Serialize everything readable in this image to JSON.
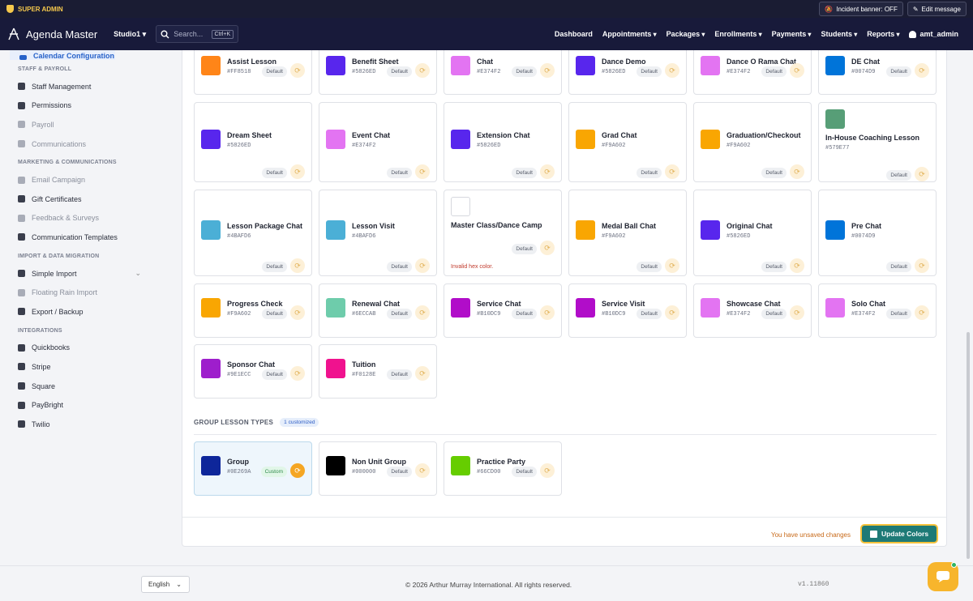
{
  "topbar": {
    "super_admin": "SUPER ADMIN",
    "incident_banner": "Incident banner: OFF",
    "edit_message": "Edit message"
  },
  "nav": {
    "app_name": "Agenda Master",
    "studio": "Studio1",
    "search_placeholder": "Search...",
    "search_shortcut": "Ctrl+K",
    "menu": [
      "Dashboard",
      "Appointments",
      "Packages",
      "Enrollments",
      "Payments",
      "Students",
      "Reports"
    ],
    "user": "amt_admin"
  },
  "sidebar": {
    "active": "Calendar Configuration",
    "sections": [
      {
        "title": "STAFF & PAYROLL",
        "items": [
          {
            "label": "Staff Management",
            "dim": false
          },
          {
            "label": "Permissions",
            "dim": false
          },
          {
            "label": "Payroll",
            "dim": true
          },
          {
            "label": "Communications",
            "dim": true
          }
        ]
      },
      {
        "title": "MARKETING & COMMUNICATIONS",
        "items": [
          {
            "label": "Email Campaign",
            "dim": true
          },
          {
            "label": "Gift Certificates",
            "dim": false
          },
          {
            "label": "Feedback & Surveys",
            "dim": true
          },
          {
            "label": "Communication Templates",
            "dim": false
          }
        ]
      },
      {
        "title": "IMPORT & DATA MIGRATION",
        "items": [
          {
            "label": "Simple Import",
            "dim": false
          },
          {
            "label": "Floating Rain Import",
            "dim": true
          },
          {
            "label": "Export / Backup",
            "dim": false
          }
        ]
      },
      {
        "title": "INTEGRATIONS",
        "items": [
          {
            "label": "Quickbooks",
            "dim": false
          },
          {
            "label": "Stripe",
            "dim": false
          },
          {
            "label": "Square",
            "dim": false
          },
          {
            "label": "PayBright",
            "dim": false
          },
          {
            "label": "Twilio",
            "dim": false
          }
        ]
      }
    ]
  },
  "lesson_cards": [
    {
      "name": "Assist Lesson",
      "hex": "#FF8518",
      "color": "#FF8518",
      "badge": "Default"
    },
    {
      "name": "Benefit Sheet",
      "hex": "#5826ED",
      "color": "#5826ED",
      "badge": "Default"
    },
    {
      "name": "Chat",
      "hex": "#E374F2",
      "color": "#E374F2",
      "badge": "Default"
    },
    {
      "name": "Dance Demo",
      "hex": "#5826ED",
      "color": "#5826ED",
      "badge": "Default"
    },
    {
      "name": "Dance O Rama Chat",
      "hex": "#E374F2",
      "color": "#E374F2",
      "badge": "Default"
    },
    {
      "name": "DE Chat",
      "hex": "#0074D9",
      "color": "#0074D9",
      "badge": "Default"
    },
    {
      "name": "Dream Sheet",
      "hex": "#5826ED",
      "color": "#5826ED",
      "badge": "Default"
    },
    {
      "name": "Event Chat",
      "hex": "#E374F2",
      "color": "#E374F2",
      "badge": "Default"
    },
    {
      "name": "Extension Chat",
      "hex": "#5826ED",
      "color": "#5826ED",
      "badge": "Default"
    },
    {
      "name": "Grad Chat",
      "hex": "#F9A602",
      "color": "#F9A602",
      "badge": "Default"
    },
    {
      "name": "Graduation/Checkout",
      "hex": "#F9A602",
      "color": "#F9A602",
      "badge": "Default"
    },
    {
      "name": "In-House Coaching Lesson",
      "hex": "#579E77",
      "color": "#579E77",
      "badge": "Default"
    },
    {
      "name": "Lesson Package Chat",
      "hex": "#4BAFD6",
      "color": "#4BAFD6",
      "badge": "Default"
    },
    {
      "name": "Lesson Visit",
      "hex": "#4BAFD6",
      "color": "#4BAFD6",
      "badge": "Default"
    },
    {
      "name": "Master Class/Dance Camp",
      "hex": "",
      "color": "#FFFFFF",
      "badge": "Default",
      "error": "Invalid hex color."
    },
    {
      "name": "Medal Ball Chat",
      "hex": "#F9A602",
      "color": "#F9A602",
      "badge": "Default"
    },
    {
      "name": "Original Chat",
      "hex": "#5826ED",
      "color": "#5826ED",
      "badge": "Default"
    },
    {
      "name": "Pre Chat",
      "hex": "#0074D9",
      "color": "#0074D9",
      "badge": "Default"
    },
    {
      "name": "Progress Check",
      "hex": "#F9A602",
      "color": "#F9A602",
      "badge": "Default"
    },
    {
      "name": "Renewal Chat",
      "hex": "#6ECCAB",
      "color": "#6ECCAB",
      "badge": "Default"
    },
    {
      "name": "Service Chat",
      "hex": "#B10DC9",
      "color": "#B10DC9",
      "badge": "Default"
    },
    {
      "name": "Service Visit",
      "hex": "#B10DC9",
      "color": "#B10DC9",
      "badge": "Default"
    },
    {
      "name": "Showcase Chat",
      "hex": "#E374F2",
      "color": "#E374F2",
      "badge": "Default"
    },
    {
      "name": "Solo Chat",
      "hex": "#E374F2",
      "color": "#E374F2",
      "badge": "Default"
    },
    {
      "name": "Sponsor Chat",
      "hex": "#9E1ECC",
      "color": "#9E1ECC",
      "badge": "Default"
    },
    {
      "name": "Tuition",
      "hex": "#F0128E",
      "color": "#F0128E",
      "badge": "Default"
    }
  ],
  "group_section": {
    "title": "GROUP LESSON TYPES",
    "customized": "1 customized"
  },
  "group_cards": [
    {
      "name": "Group",
      "hex": "#0E269A",
      "color": "#0E269A",
      "badge": "Custom"
    },
    {
      "name": "Non Unit Group",
      "hex": "#000000",
      "color": "#000000",
      "badge": "Default"
    },
    {
      "name": "Practice Party",
      "hex": "#66CD00",
      "color": "#66CD00",
      "badge": "Default"
    }
  ],
  "actions": {
    "unsaved": "You have unsaved changes",
    "update": "Update Colors"
  },
  "footer": {
    "language": "English",
    "copyright": "© 2026 Arthur Murray International. All rights reserved.",
    "version": "v1.11860"
  }
}
